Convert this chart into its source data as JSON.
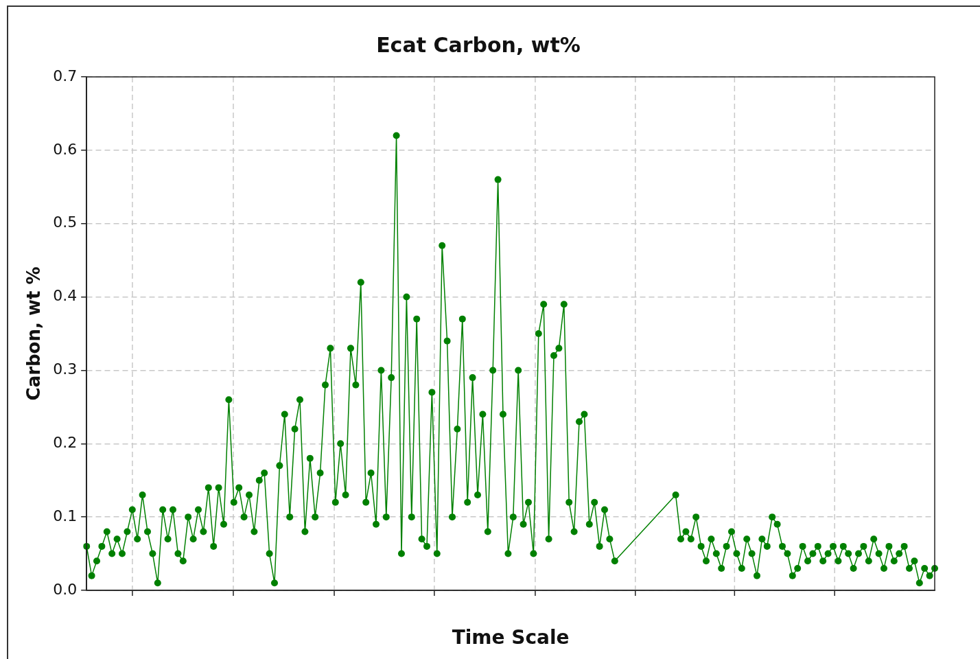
{
  "chart_data": {
    "type": "line",
    "title": "Ecat Carbon, wt%",
    "xlabel": "Time Scale",
    "ylabel": "Carbon, wt %",
    "categories": [
      null,
      null,
      null,
      null,
      null,
      null,
      null,
      null,
      null,
      null,
      null,
      null,
      null,
      null,
      null,
      null,
      null,
      null,
      null,
      null,
      null,
      null,
      null,
      null,
      null,
      null,
      null,
      null,
      null,
      null,
      null,
      null,
      null,
      null,
      null,
      null,
      null,
      null,
      null,
      null,
      null,
      null,
      null,
      null,
      null,
      null,
      null,
      null,
      null,
      null,
      null,
      null,
      null,
      null,
      null,
      null,
      null,
      null,
      null,
      null,
      null,
      null,
      null,
      null,
      null,
      null,
      null,
      null,
      null,
      null,
      null,
      null,
      null,
      null,
      null,
      null,
      null,
      null,
      null,
      null,
      null,
      null,
      null,
      null,
      null,
      null,
      null,
      null,
      null,
      null,
      null,
      null,
      null,
      null,
      null,
      null,
      null,
      null,
      null,
      null,
      null,
      null,
      null,
      null,
      null,
      null,
      null,
      null,
      null,
      null,
      null,
      null,
      null,
      null,
      null,
      null,
      null,
      null,
      null,
      null,
      null,
      null,
      null,
      null,
      null,
      null,
      null,
      null,
      null,
      null,
      null,
      null,
      null,
      null,
      null,
      null,
      null,
      null,
      null,
      null,
      null,
      null,
      null,
      null,
      null,
      null,
      null,
      null,
      null,
      null,
      null,
      null,
      null,
      null,
      null,
      null,
      null,
      null,
      null,
      null,
      null,
      null,
      null,
      null,
      null,
      null,
      null,
      null
    ],
    "ylim": [
      0,
      0.7
    ],
    "yticks": [
      {
        "value": 0,
        "label": "0.0"
      },
      0.1,
      0.2,
      0.3,
      0.4,
      0.5,
      0.6,
      0.7
    ],
    "grid": true,
    "legend": false,
    "marker": "circle",
    "line_style": "solid",
    "series": [
      {
        "color": "#008000",
        "values": [
          0.06,
          0.02,
          0.04,
          0.06,
          0.08,
          0.05,
          0.07,
          0.05,
          0.08,
          0.11,
          0.07,
          0.13,
          0.08,
          0.05,
          0.01,
          0.11,
          0.07,
          0.11,
          0.05,
          0.04,
          0.1,
          0.07,
          0.11,
          0.08,
          0.14,
          0.06,
          0.14,
          0.09,
          0.26,
          0.12,
          0.14,
          0.1,
          0.13,
          0.08,
          0.15,
          0.16,
          0.05,
          0.01,
          0.17,
          0.24,
          0.1,
          0.22,
          0.26,
          0.08,
          0.18,
          0.1,
          0.16,
          0.28,
          0.33,
          0.12,
          0.2,
          0.13,
          0.33,
          0.28,
          0.42,
          0.12,
          0.16,
          0.09,
          0.3,
          0.1,
          0.29,
          0.62,
          0.05,
          0.4,
          0.1,
          0.37,
          0.07,
          0.06,
          0.27,
          0.05,
          0.47,
          0.34,
          0.1,
          0.22,
          0.37,
          0.12,
          0.29,
          0.13,
          0.24,
          0.08,
          0.3,
          0.56,
          0.24,
          0.05,
          0.1,
          0.3,
          0.09,
          0.12,
          0.05,
          0.35,
          0.39,
          0.07,
          0.32,
          0.33,
          0.39,
          0.12,
          0.08,
          0.23,
          0.24,
          0.09,
          0.12,
          0.06,
          0.11,
          0.07,
          0.04,
          null,
          null,
          null,
          null,
          null,
          null,
          null,
          null,
          null,
          null,
          null,
          0.13,
          0.07,
          0.08,
          0.07,
          0.1,
          0.06,
          0.04,
          0.07,
          0.05,
          0.03,
          0.06,
          0.08,
          0.05,
          0.03,
          0.07,
          0.05,
          0.02,
          0.07,
          0.06,
          0.1,
          0.09,
          0.06,
          0.05,
          0.02,
          0.03,
          0.06,
          0.04,
          0.05,
          0.06,
          0.04,
          0.05,
          0.06,
          0.04,
          0.06,
          0.05,
          0.03,
          0.05,
          0.06,
          0.04,
          0.07,
          0.05,
          0.03,
          0.06,
          0.04,
          0.05,
          0.06,
          0.03,
          0.04,
          0.01,
          0.03,
          0.02,
          0.03
        ]
      }
    ]
  }
}
